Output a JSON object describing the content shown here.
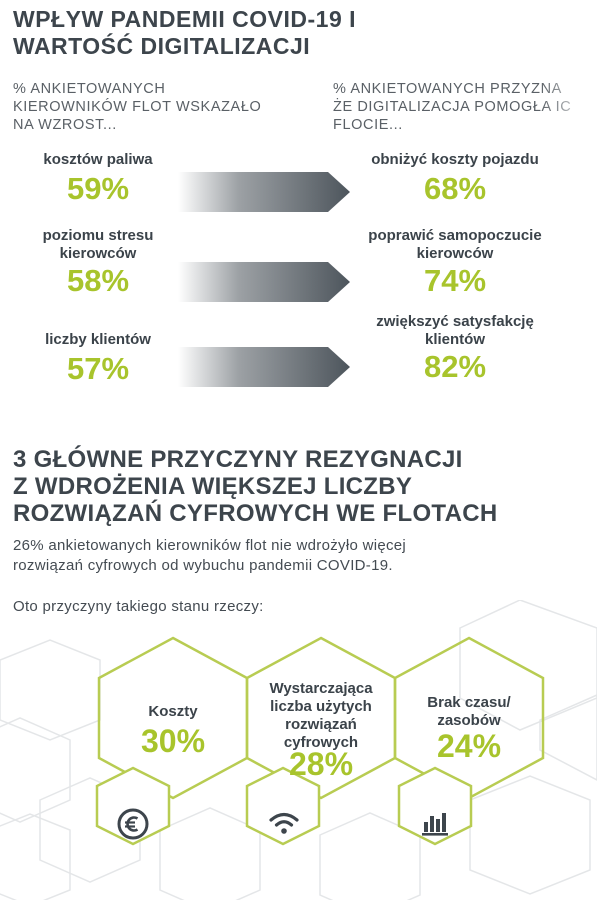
{
  "section1": {
    "title_line1": "WPŁYW PANDEMII COVID-19 I",
    "title_line2": "WARTOŚĆ DIGITALIZACJI",
    "caption_left": [
      "% ANKIETOWANYCH",
      "KIEROWNIKÓW FLOT WSKAZAŁO",
      "NA WZROST..."
    ],
    "caption_right": [
      "% ANKIETOWANYCH PRZYZNA",
      "ŻE DIGITALIZACJA POMOGŁA IC",
      "FLOCIE..."
    ],
    "rows": [
      {
        "left_label": [
          "kosztów paliwa"
        ],
        "left_value": "59%",
        "right_label": [
          "obniżyć koszty pojazdu"
        ],
        "right_value": "68%"
      },
      {
        "left_label": [
          "poziomu stresu",
          "kierowców"
        ],
        "left_value": "58%",
        "right_label": [
          "poprawić samopoczucie",
          "kierowców"
        ],
        "right_value": "74%"
      },
      {
        "left_label": [
          "liczby klientów"
        ],
        "left_value": "57%",
        "right_label": [
          "zwiększyć satysfakcję",
          "klientów"
        ],
        "right_value": "82%"
      }
    ]
  },
  "section2": {
    "title_line1": "3 GŁÓWNE PRZYCZYNY REZYGNACJI",
    "title_line2": "Z WDROŻENIA WIĘKSZEJ LICZBY",
    "title_line3": "ROZWIĄZAŃ CYFROWYCH WE FLOTACH",
    "paragraph_line1": "26% ankietowanych kierowników flot nie wdrożyło więcej",
    "paragraph_line2": "rozwiązań cyfrowych od wybuchu pandemii COVID-19.",
    "paragraph2": "Oto przyczyny takiego stanu rzeczy:",
    "reasons": [
      {
        "label": [
          "Koszty"
        ],
        "value": "30%",
        "icon": "euro-icon"
      },
      {
        "label": [
          "Wystarczająca",
          "liczba użytych",
          "rozwiązań",
          "cyfrowych"
        ],
        "value": "28%",
        "icon": "wifi-icon"
      },
      {
        "label": [
          "Brak czasu/",
          "zasobów"
        ],
        "value": "24%",
        "icon": "bar-chart-icon"
      }
    ]
  },
  "colors": {
    "accent": "#a8c42c",
    "text": "#3d454c",
    "arrow": "#4d555c"
  }
}
